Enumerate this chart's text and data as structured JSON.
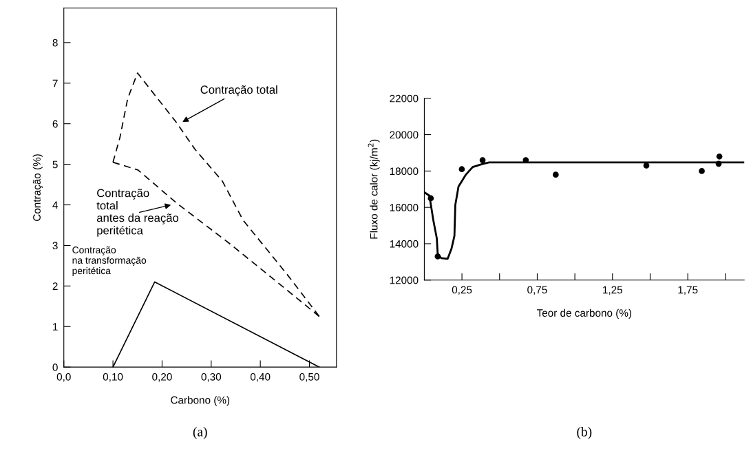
{
  "chart_data": [
    {
      "type": "line",
      "xlabel": "Carbono (%)",
      "ylabel": "Contração (%)",
      "xlim": [
        0,
        0.555
      ],
      "ylim": [
        0,
        8.85
      ],
      "xticks": [
        {
          "value": 0,
          "label": "0,0"
        },
        {
          "value": 0.1,
          "label": "0,10"
        },
        {
          "value": 0.2,
          "label": "0,20"
        },
        {
          "value": 0.3,
          "label": "0,30"
        },
        {
          "value": 0.4,
          "label": "0,40"
        },
        {
          "value": 0.5,
          "label": "0,50"
        }
      ],
      "yticks": [
        0,
        1,
        2,
        3,
        4,
        5,
        6,
        7,
        8
      ],
      "grid": false,
      "legend": false,
      "marker": "none",
      "series": [
        {
          "color": "#000000",
          "line_style": "dashed",
          "x": [
            0.1,
            0.114,
            0.13,
            0.15,
            0.228,
            0.267,
            0.323,
            0.365,
            0.453,
            0.52
          ],
          "values": [
            5.05,
            5.65,
            6.62,
            7.25,
            6.05,
            5.37,
            4.58,
            3.62,
            2.31,
            1.25
          ]
        },
        {
          "color": "#000000",
          "line_style": "dashed",
          "x": [
            0.1,
            0.151,
            0.23,
            0.337,
            0.444,
            0.52
          ],
          "values": [
            5.05,
            4.86,
            4.04,
            3.05,
            2.0,
            1.25
          ]
        },
        {
          "color": "#000000",
          "line_style": "solid",
          "x": [
            0.1,
            0.185,
            0.52
          ],
          "values": [
            0,
            2.1,
            0
          ]
        }
      ],
      "annotations": [
        "Contração total",
        "Contração\ntotal\nantes da reação\nperitética",
        "Contração\nna transformação\nperitética",
        "(a)"
      ]
    },
    {
      "type": "line",
      "xlabel": "Teor de carbono (%)",
      "ylabel": "Fluxo de calor (kj/m$^{2}$)",
      "xlim": [
        0,
        2.125
      ],
      "ylim": [
        12000,
        22000
      ],
      "xticks": [
        {
          "value": 0.25,
          "label": "0,25"
        },
        {
          "value": 0.5,
          "label": null
        },
        {
          "value": 0.75,
          "label": "0,75"
        },
        {
          "value": 1.0,
          "label": null
        },
        {
          "value": 1.25,
          "label": "1,25"
        },
        {
          "value": 1.5,
          "label": null
        },
        {
          "value": 1.75,
          "label": "1,75"
        },
        {
          "value": 2.0,
          "label": null
        }
      ],
      "yticks": [
        12000,
        14000,
        16000,
        18000,
        20000,
        22000
      ],
      "grid": false,
      "legend": false,
      "series": [
        {
          "type": "line",
          "color": "#000000",
          "marker": "none",
          "line_style": "solid",
          "x": [
            0,
            0.034,
            0.06,
            0.083,
            0.089,
            0.112,
            0.155,
            0.18,
            0.2,
            0.206,
            0.227,
            0.275,
            0.321,
            0.387,
            0.43,
            2.123
          ],
          "values": [
            16830,
            16640,
            15290,
            14290,
            13430,
            13210,
            13170,
            13710,
            14430,
            16140,
            17140,
            17790,
            18220,
            18390,
            18470,
            18470
          ]
        },
        {
          "type": "scatter",
          "color": "#000000",
          "marker": "circle",
          "x": [
            0.043,
            0.089,
            0.249,
            0.387,
            0.674,
            0.873,
            1.475,
            1.843,
            1.955,
            1.96
          ],
          "values": [
            16500,
            13300,
            18100,
            18600,
            18600,
            17800,
            18300,
            18000,
            18400,
            18800
          ]
        }
      ],
      "annotations": [
        "(b)"
      ]
    }
  ]
}
